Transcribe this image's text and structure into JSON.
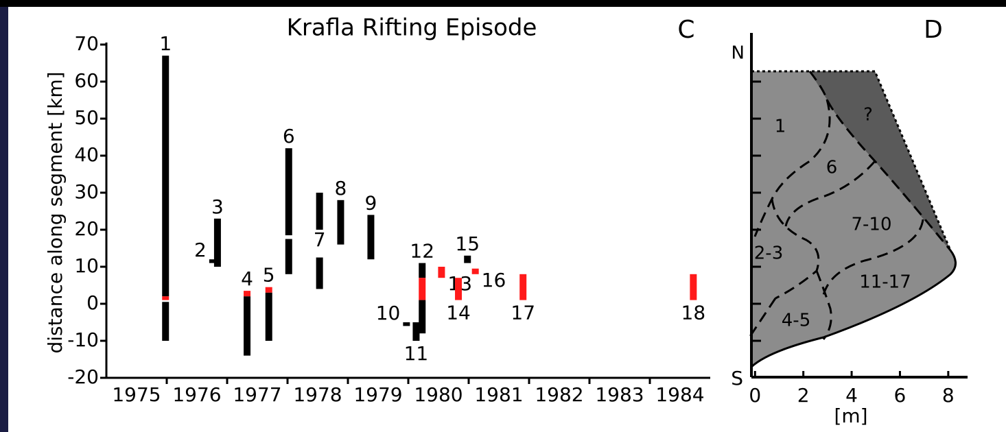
{
  "chart_data": [
    {
      "type": "range-bar",
      "title": "Krafla Rifting Episode",
      "panel_label": "C",
      "ylabel": "distance along segment [km]",
      "xlim": [
        1975,
        1985
      ],
      "xticks": [
        {
          "value": 1975.5,
          "label": "1975"
        },
        {
          "value": 1976.5,
          "label": "1976"
        },
        {
          "value": 1977.5,
          "label": "1977"
        },
        {
          "value": 1978.5,
          "label": "1978"
        },
        {
          "value": 1979.5,
          "label": "1979"
        },
        {
          "value": 1980.5,
          "label": "1980"
        },
        {
          "value": 1981.5,
          "label": "1981"
        },
        {
          "value": 1982.5,
          "label": "1982"
        },
        {
          "value": 1983.5,
          "label": "1983"
        },
        {
          "value": 1984.5,
          "label": "1984"
        }
      ],
      "xtick_marks": [
        1976,
        1977,
        1978,
        1979,
        1980,
        1981,
        1982,
        1983,
        1984
      ],
      "ylim": [
        -20,
        70
      ],
      "yticks": [
        -20,
        -10,
        0,
        10,
        20,
        30,
        40,
        50,
        60,
        70
      ],
      "events": [
        {
          "name": "1",
          "x": 1975.98,
          "label_pos": "top",
          "segments": [
            {
              "low": 2,
              "high": 67,
              "color": "#000000"
            },
            {
              "low": 1,
              "high": 2,
              "color": "#ff1a1a"
            },
            {
              "low": -10,
              "high": 0.5,
              "color": "#000000"
            }
          ]
        },
        {
          "name": "2",
          "x": 1976.76,
          "label_pos": "left",
          "segments": [
            {
              "low": 11,
              "high": 12,
              "color": "#000000"
            }
          ]
        },
        {
          "name": "3",
          "x": 1976.84,
          "label_pos": "top",
          "segments": [
            {
              "low": 10,
              "high": 23,
              "color": "#000000"
            }
          ]
        },
        {
          "name": "4",
          "x": 1977.33,
          "label_pos": "top",
          "segments": [
            {
              "low": 2,
              "high": 3.5,
              "color": "#ff1a1a"
            },
            {
              "low": -14,
              "high": 2,
              "color": "#000000"
            }
          ]
        },
        {
          "name": "5",
          "x": 1977.69,
          "label_pos": "top",
          "segments": [
            {
              "low": 3,
              "high": 4.5,
              "color": "#ff1a1a"
            },
            {
              "low": -10,
              "high": 3,
              "color": "#000000"
            }
          ]
        },
        {
          "name": "6",
          "x": 1978.02,
          "label_pos": "top",
          "segments": [
            {
              "low": 18.5,
              "high": 42,
              "color": "#000000"
            },
            {
              "low": 8,
              "high": 17.5,
              "color": "#000000"
            }
          ]
        },
        {
          "name": "7",
          "x": 1978.53,
          "label_pos": "center",
          "segments": [
            {
              "low": 20,
              "high": 30,
              "color": "#000000"
            },
            {
              "low": 4,
              "high": 12.5,
              "color": "#000000"
            }
          ]
        },
        {
          "name": "8",
          "x": 1978.88,
          "label_pos": "top",
          "segments": [
            {
              "low": 16,
              "high": 28,
              "color": "#000000"
            }
          ]
        },
        {
          "name": "9",
          "x": 1979.38,
          "label_pos": "top",
          "segments": [
            {
              "low": 12,
              "high": 24,
              "color": "#000000"
            }
          ]
        },
        {
          "name": "10",
          "x": 1979.97,
          "label_pos": "left",
          "segments": [
            {
              "low": -6,
              "high": -5,
              "color": "#000000"
            }
          ]
        },
        {
          "name": "11",
          "x": 1980.13,
          "label_pos": "bottom",
          "segments": [
            {
              "low": -10,
              "high": -5,
              "color": "#000000"
            }
          ]
        },
        {
          "name": "12",
          "x": 1980.23,
          "label_pos": "top",
          "segments": [
            {
              "low": 7,
              "high": 11,
              "color": "#000000"
            },
            {
              "low": 1,
              "high": 7,
              "color": "#ff1a1a"
            },
            {
              "low": -8,
              "high": 1,
              "color": "#000000"
            }
          ]
        },
        {
          "name": "13",
          "x": 1980.55,
          "label_pos": "right",
          "segments": [
            {
              "low": 7,
              "high": 10,
              "color": "#ff1a1a"
            }
          ]
        },
        {
          "name": "14",
          "x": 1980.83,
          "label_pos": "bottom",
          "segments": [
            {
              "low": 1,
              "high": 7,
              "color": "#ff1a1a"
            }
          ]
        },
        {
          "name": "15",
          "x": 1980.98,
          "label_pos": "top",
          "segments": [
            {
              "low": 11,
              "high": 13,
              "color": "#000000"
            }
          ]
        },
        {
          "name": "16",
          "x": 1981.11,
          "label_pos": "right",
          "segments": [
            {
              "low": 8,
              "high": 9.5,
              "color": "#ff1a1a"
            }
          ]
        },
        {
          "name": "17",
          "x": 1981.9,
          "label_pos": "bottom",
          "segments": [
            {
              "low": 1,
              "high": 8,
              "color": "#ff1a1a"
            }
          ]
        },
        {
          "name": "18",
          "x": 1984.72,
          "label_pos": "bottom",
          "segments": [
            {
              "low": 1,
              "high": 8,
              "color": "#ff1a1a"
            }
          ]
        }
      ]
    },
    {
      "type": "area-profile",
      "panel_label": "D",
      "xlabel": "[m]",
      "xlim": [
        -0.15,
        8.8
      ],
      "xticks": [
        0,
        2,
        4,
        6,
        8
      ],
      "ylim": [
        -20,
        70
      ],
      "yticks": [
        -10,
        0,
        10,
        20,
        30,
        40,
        50,
        60
      ],
      "y_top_label": "N",
      "y_bottom_label": "S",
      "regions": [
        {
          "label": "1"
        },
        {
          "label": "?"
        },
        {
          "label": "6"
        },
        {
          "label": "7-10"
        },
        {
          "label": "2-3"
        },
        {
          "label": "11-17"
        },
        {
          "label": "4-5"
        }
      ]
    }
  ]
}
